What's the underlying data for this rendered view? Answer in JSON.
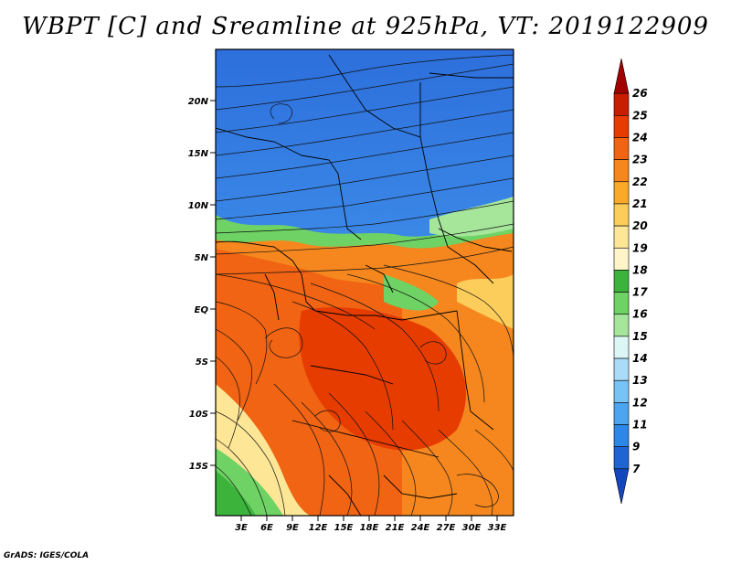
{
  "title": "WBPT [C] and Sreamline at 925hPa, VT: 2019122909",
  "credit": "GrADS: IGES/COLA",
  "map": {
    "lat_labels": [
      "20N",
      "15N",
      "10N",
      "5N",
      "EQ",
      "5S",
      "10S",
      "15S"
    ],
    "lon_labels": [
      "3E",
      "6E",
      "9E",
      "12E",
      "15E",
      "18E",
      "21E",
      "24E",
      "27E",
      "30E",
      "33E"
    ]
  },
  "colorbar": {
    "labels": [
      "26",
      "25",
      "24",
      "23",
      "22",
      "21",
      "20",
      "19",
      "18",
      "17",
      "16",
      "15",
      "14",
      "13",
      "12",
      "11",
      "9",
      "7"
    ],
    "colors": [
      "#a00000",
      "#c81e00",
      "#e63c00",
      "#f06414",
      "#f5871e",
      "#faaa28",
      "#fccd5a",
      "#fde696",
      "#fff5c8",
      "#3cb43c",
      "#6ed264",
      "#a5e69b",
      "#dcf5f5",
      "#aadcfa",
      "#78c3f5",
      "#4ba5f0",
      "#2d87e6",
      "#1e64d2",
      "#1446be"
    ]
  }
}
